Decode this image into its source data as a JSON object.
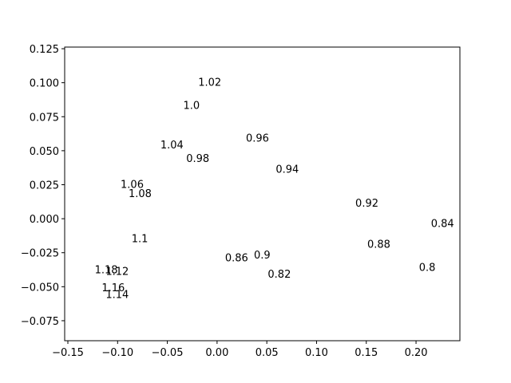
{
  "chart_data": {
    "type": "scatter",
    "marker": "text",
    "x": [
      -0.019,
      -0.034,
      -0.057,
      -0.031,
      0.029,
      0.059,
      -0.097,
      -0.089,
      0.139,
      0.215,
      -0.086,
      0.151,
      0.037,
      0.008,
      0.203,
      -0.123,
      -0.112,
      0.051,
      -0.116,
      -0.112
    ],
    "y": [
      0.096,
      0.079,
      0.05,
      0.04,
      0.055,
      0.032,
      0.021,
      0.014,
      0.007,
      -0.008,
      -0.019,
      -0.023,
      -0.031,
      -0.033,
      -0.04,
      -0.042,
      -0.043,
      -0.045,
      -0.055,
      -0.06
    ],
    "labels": [
      "1.02",
      "1.0",
      "1.04",
      "0.98",
      "0.96",
      "0.94",
      "1.06",
      "1.08",
      "0.92",
      "0.84",
      "1.1",
      "0.88",
      "0.9",
      "0.86",
      "0.8",
      "1.18",
      "1.12",
      "0.82",
      "1.16",
      "1.14"
    ],
    "xlim": [
      -0.1532,
      0.2441
    ],
    "ylim": [
      -0.0897,
      0.1262
    ],
    "xticks": [
      {
        "value": -0.15,
        "label": "−0.15"
      },
      {
        "value": -0.1,
        "label": "−0.10"
      },
      {
        "value": -0.05,
        "label": "−0.05"
      },
      {
        "value": 0,
        "label": "0.00"
      },
      {
        "value": 0.05,
        "label": "0.05"
      },
      {
        "value": 0.1,
        "label": "0.10"
      },
      {
        "value": 0.15,
        "label": "0.15"
      },
      {
        "value": 0.2,
        "label": "0.20"
      }
    ],
    "yticks": [
      {
        "value": -0.075,
        "label": "−0.075"
      },
      {
        "value": -0.05,
        "label": "−0.050"
      },
      {
        "value": -0.025,
        "label": "−0.025"
      },
      {
        "value": 0,
        "label": "0.000"
      },
      {
        "value": 0.025,
        "label": "0.025"
      },
      {
        "value": 0.05,
        "label": "0.050"
      },
      {
        "value": 0.075,
        "label": "0.075"
      },
      {
        "value": 0.1,
        "label": "0.100"
      },
      {
        "value": 0.125,
        "label": "0.125"
      }
    ],
    "grid": false
  }
}
